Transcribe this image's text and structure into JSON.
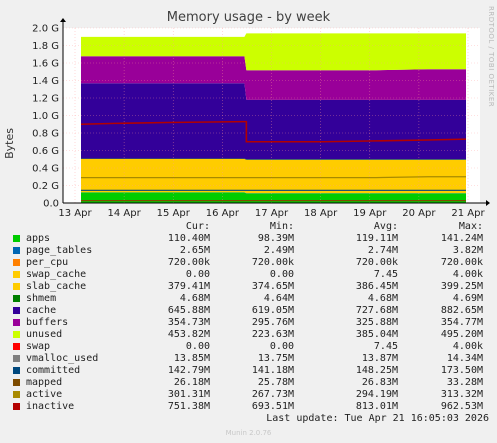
{
  "title": "Memory usage - by week",
  "side_text": "RRDTOOL / TOBI OETIKER",
  "footer": "Last update: Tue Apr 21 16:05:03 2026",
  "munin_version": "Munin 2.0.76",
  "chart_data": {
    "type": "area",
    "title": "Memory usage - by week",
    "ylabel": "Bytes",
    "xlabel": "",
    "ylim": [
      0,
      2.0
    ],
    "y_unit": "G",
    "y_ticks": [
      "0.0",
      "0.2 G",
      "0.4 G",
      "0.6 G",
      "0.8 G",
      "1.0 G",
      "1.2 G",
      "1.4 G",
      "1.6 G",
      "1.8 G",
      "2.0 G"
    ],
    "x_ticks": [
      "13 Apr",
      "14 Apr",
      "15 Apr",
      "16 Apr",
      "17 Apr",
      "18 Apr",
      "19 Apr",
      "20 Apr",
      "21 Apr"
    ],
    "x_range": [
      "2026-04-13",
      "2026-04-21"
    ],
    "x_values": [
      "2026-04-13",
      "2026-04-14",
      "2026-04-15",
      "2026-04-16",
      "2026-04-16",
      "2026-04-17",
      "2026-04-18",
      "2026-04-19",
      "2026-04-20",
      "2026-04-21"
    ],
    "grid": true,
    "stacked_series": [
      {
        "name": "apps",
        "color": "#00cc00",
        "values": [
          0.12,
          0.12,
          0.12,
          0.12,
          0.11,
          0.11,
          0.11,
          0.11,
          0.11,
          0.11
        ]
      },
      {
        "name": "page_tables",
        "color": "#0066b3",
        "values": [
          0.003,
          0.003,
          0.003,
          0.003,
          0.003,
          0.003,
          0.003,
          0.003,
          0.003,
          0.003
        ]
      },
      {
        "name": "slab_cache",
        "color": "#ffcc00",
        "values": [
          0.38,
          0.38,
          0.38,
          0.38,
          0.38,
          0.38,
          0.38,
          0.38,
          0.38,
          0.38
        ]
      },
      {
        "name": "shmem",
        "color": "#008000",
        "values": [
          0.005,
          0.005,
          0.005,
          0.005,
          0.005,
          0.005,
          0.005,
          0.005,
          0.005,
          0.005
        ]
      },
      {
        "name": "cache",
        "color": "#330099",
        "values": [
          0.86,
          0.86,
          0.86,
          0.86,
          0.68,
          0.68,
          0.68,
          0.68,
          0.68,
          0.68
        ]
      },
      {
        "name": "buffers",
        "color": "#990099",
        "values": [
          0.31,
          0.31,
          0.31,
          0.31,
          0.34,
          0.34,
          0.34,
          0.34,
          0.35,
          0.35
        ]
      },
      {
        "name": "unused",
        "color": "#ccff00",
        "values": [
          0.22,
          0.22,
          0.22,
          0.22,
          0.42,
          0.42,
          0.42,
          0.42,
          0.41,
          0.41
        ]
      }
    ],
    "line_series": [
      {
        "name": "committed",
        "color": "#00487d",
        "values": [
          0.145,
          0.145,
          0.145,
          0.145,
          0.145,
          0.145,
          0.145,
          0.145,
          0.145,
          0.145
        ]
      },
      {
        "name": "mapped",
        "color": "#7d4b00",
        "values": [
          0.027,
          0.027,
          0.027,
          0.027,
          0.027,
          0.027,
          0.027,
          0.027,
          0.027,
          0.027
        ]
      },
      {
        "name": "active",
        "color": "#a88a00",
        "values": [
          0.29,
          0.29,
          0.29,
          0.29,
          0.29,
          0.29,
          0.29,
          0.29,
          0.3,
          0.3
        ]
      },
      {
        "name": "inactive",
        "color": "#b30000",
        "values": [
          0.9,
          0.91,
          0.92,
          0.93,
          0.7,
          0.7,
          0.7,
          0.71,
          0.72,
          0.73
        ]
      }
    ]
  },
  "legend": {
    "headers": {
      "cur": "Cur:",
      "min": "Min:",
      "avg": "Avg:",
      "max": "Max:"
    },
    "rows": [
      {
        "name": "apps",
        "color": "#00cc00",
        "cur": "110.40M",
        "min": "98.39M",
        "avg": "119.11M",
        "max": "141.24M"
      },
      {
        "name": "page_tables",
        "color": "#0066b3",
        "cur": "2.65M",
        "min": "2.49M",
        "avg": "2.74M",
        "max": "3.82M"
      },
      {
        "name": "per_cpu",
        "color": "#ff8000",
        "cur": "720.00k",
        "min": "720.00k",
        "avg": "720.00k",
        "max": "720.00k"
      },
      {
        "name": "swap_cache",
        "color": "#ffcc00",
        "cur": "0.00",
        "min": "0.00",
        "avg": "7.45",
        "max": "4.00k"
      },
      {
        "name": "slab_cache",
        "color": "#ffcc00",
        "cur": "379.41M",
        "min": "374.65M",
        "avg": "386.45M",
        "max": "399.25M"
      },
      {
        "name": "shmem",
        "color": "#008000",
        "cur": "4.68M",
        "min": "4.64M",
        "avg": "4.68M",
        "max": "4.69M"
      },
      {
        "name": "cache",
        "color": "#330099",
        "cur": "645.88M",
        "min": "619.05M",
        "avg": "727.68M",
        "max": "882.65M"
      },
      {
        "name": "buffers",
        "color": "#990099",
        "cur": "354.73M",
        "min": "295.76M",
        "avg": "325.88M",
        "max": "354.77M"
      },
      {
        "name": "unused",
        "color": "#ccff00",
        "cur": "453.82M",
        "min": "223.63M",
        "avg": "385.04M",
        "max": "495.20M"
      },
      {
        "name": "swap",
        "color": "#ff0000",
        "cur": "0.00",
        "min": "0.00",
        "avg": "7.45",
        "max": "4.00k"
      },
      {
        "name": "vmalloc_used",
        "color": "#808080",
        "cur": "13.85M",
        "min": "13.75M",
        "avg": "13.87M",
        "max": "14.34M"
      },
      {
        "name": "committed",
        "color": "#00487d",
        "cur": "142.79M",
        "min": "141.18M",
        "avg": "148.25M",
        "max": "173.50M"
      },
      {
        "name": "mapped",
        "color": "#7d4b00",
        "cur": "26.18M",
        "min": "25.78M",
        "avg": "26.83M",
        "max": "33.28M"
      },
      {
        "name": "active",
        "color": "#a88a00",
        "cur": "301.31M",
        "min": "267.73M",
        "avg": "294.19M",
        "max": "313.32M"
      },
      {
        "name": "inactive",
        "color": "#b30000",
        "cur": "751.38M",
        "min": "693.51M",
        "avg": "813.01M",
        "max": "962.53M"
      }
    ]
  }
}
